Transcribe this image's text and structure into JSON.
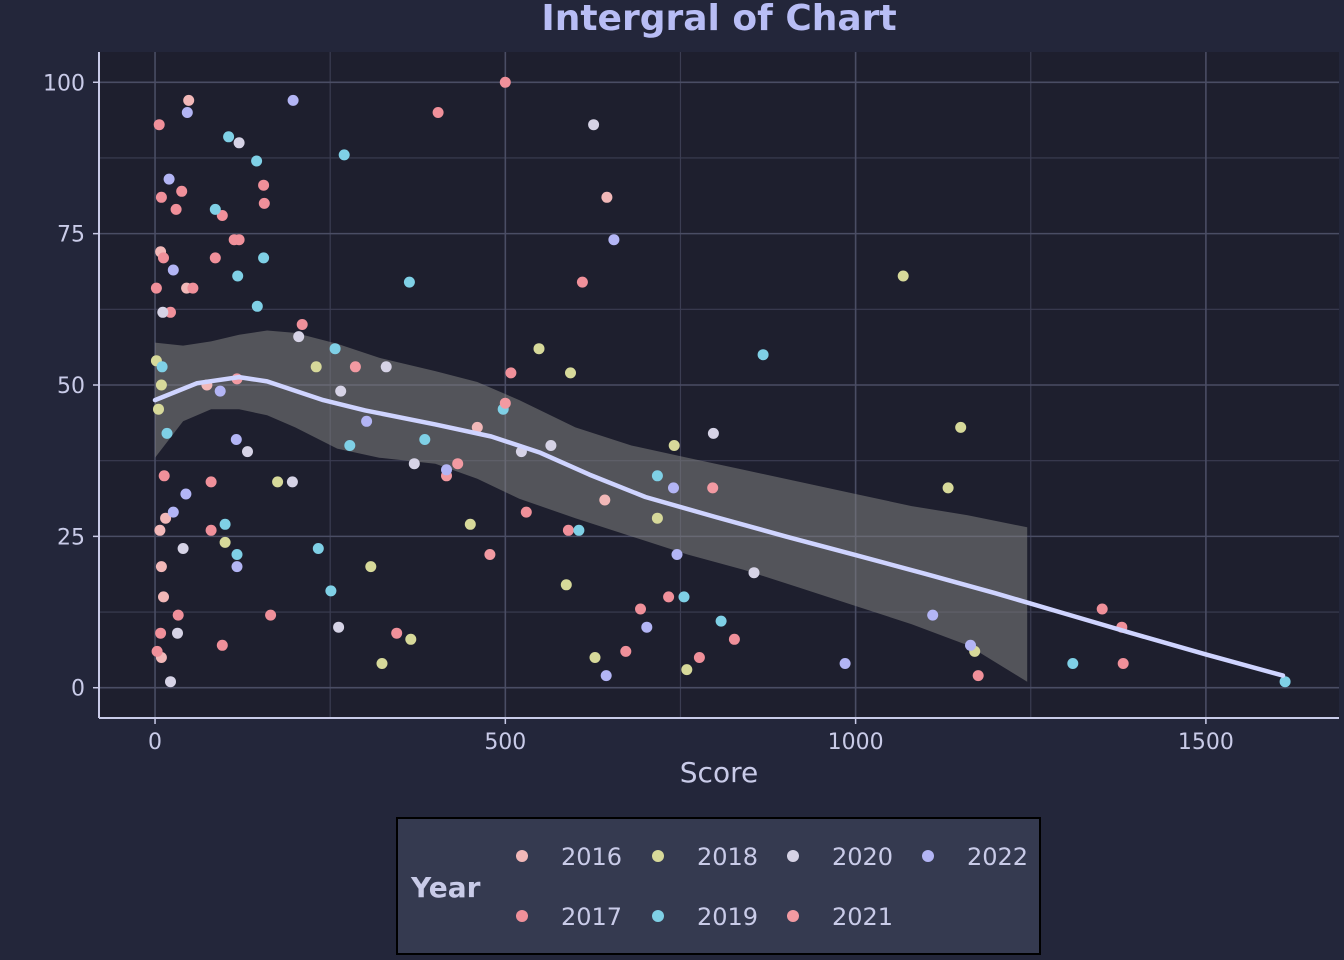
{
  "chart_data": {
    "type": "scatter",
    "title": "Intergral of Chart",
    "xlabel": "Score",
    "ylabel": "",
    "xlim": [
      -80,
      1690
    ],
    "ylim": [
      -5,
      105
    ],
    "x_ticks": [
      0,
      500,
      1000,
      1500
    ],
    "y_ticks": [
      0,
      25,
      50,
      75,
      100
    ],
    "x_tick_labels": [
      "0",
      "500",
      "1000",
      "1500"
    ],
    "y_tick_labels": [
      "0",
      "25",
      "50",
      "75",
      "100"
    ],
    "grid": true,
    "legend": {
      "title": "Year",
      "placement": "bottom",
      "entries": [
        "2016",
        "2017",
        "2018",
        "2019",
        "2020",
        "2021",
        "2022"
      ]
    },
    "colors": {
      "2016": "#f2b8b8",
      "2017": "#f0909a",
      "2018": "#d7d99a",
      "2019": "#7fd0e6",
      "2020": "#d6d3e6",
      "2021": "#f29aa2",
      "2022": "#b3b5f5",
      "trend": "#cfd4ff",
      "band": "#808080"
    },
    "series": [
      {
        "name": "2016",
        "points": [
          [
            7,
            26
          ],
          [
            9,
            20
          ],
          [
            12,
            15
          ],
          [
            15,
            28
          ],
          [
            8,
            72
          ],
          [
            45,
            66
          ],
          [
            48,
            97
          ],
          [
            74,
            50
          ],
          [
            645,
            81
          ],
          [
            460,
            43
          ],
          [
            9,
            5
          ],
          [
            642,
            31
          ]
        ]
      },
      {
        "name": "2017",
        "points": [
          [
            2,
            66
          ],
          [
            6,
            93
          ],
          [
            9,
            81
          ],
          [
            12,
            71
          ],
          [
            13,
            35
          ],
          [
            22,
            62
          ],
          [
            30,
            79
          ],
          [
            38,
            82
          ],
          [
            54,
            66
          ],
          [
            80,
            34
          ],
          [
            80,
            26
          ],
          [
            86,
            71
          ],
          [
            96,
            78
          ],
          [
            96,
            7
          ],
          [
            113,
            74
          ],
          [
            120,
            74
          ],
          [
            155,
            83
          ],
          [
            156,
            80
          ],
          [
            165,
            12
          ],
          [
            210,
            60
          ],
          [
            345,
            9
          ],
          [
            404,
            95
          ],
          [
            500,
            100
          ],
          [
            508,
            52
          ],
          [
            530,
            29
          ],
          [
            590,
            26
          ],
          [
            610,
            67
          ],
          [
            672,
            6
          ],
          [
            693,
            13
          ],
          [
            733,
            15
          ],
          [
            777,
            5
          ],
          [
            827,
            8
          ],
          [
            1352,
            13
          ],
          [
            1380,
            10
          ],
          [
            1382,
            4
          ],
          [
            1175,
            2
          ],
          [
            3,
            6
          ],
          [
            8,
            9
          ],
          [
            33,
            12
          ]
        ]
      },
      {
        "name": "2018",
        "points": [
          [
            2,
            54
          ],
          [
            5,
            46
          ],
          [
            9,
            50
          ],
          [
            100,
            24
          ],
          [
            175,
            34
          ],
          [
            230,
            53
          ],
          [
            308,
            20
          ],
          [
            324,
            4
          ],
          [
            365,
            8
          ],
          [
            450,
            27
          ],
          [
            548,
            56
          ],
          [
            587,
            17
          ],
          [
            593,
            52
          ],
          [
            628,
            5
          ],
          [
            717,
            28
          ],
          [
            741,
            40
          ],
          [
            759,
            3
          ],
          [
            1068,
            68
          ],
          [
            1132,
            33
          ],
          [
            1150,
            43
          ],
          [
            1170,
            6
          ]
        ]
      },
      {
        "name": "2019",
        "points": [
          [
            10,
            53
          ],
          [
            17,
            42
          ],
          [
            86,
            79
          ],
          [
            100,
            27
          ],
          [
            105,
            91
          ],
          [
            118,
            68
          ],
          [
            117,
            22
          ],
          [
            145,
            87
          ],
          [
            146,
            63
          ],
          [
            155,
            71
          ],
          [
            233,
            23
          ],
          [
            251,
            16
          ],
          [
            257,
            56
          ],
          [
            270,
            88
          ],
          [
            278,
            40
          ],
          [
            363,
            67
          ],
          [
            385,
            41
          ],
          [
            497,
            46
          ],
          [
            605,
            26
          ],
          [
            717,
            35
          ],
          [
            755,
            15
          ],
          [
            808,
            11
          ],
          [
            868,
            55
          ],
          [
            1310,
            4
          ],
          [
            1613,
            1
          ]
        ]
      },
      {
        "name": "2020",
        "points": [
          [
            11,
            62
          ],
          [
            22,
            1
          ],
          [
            32,
            9
          ],
          [
            40,
            23
          ],
          [
            120,
            90
          ],
          [
            132,
            39
          ],
          [
            196,
            34
          ],
          [
            205,
            58
          ],
          [
            262,
            10
          ],
          [
            265,
            49
          ],
          [
            330,
            53
          ],
          [
            370,
            37
          ],
          [
            523,
            39
          ],
          [
            565,
            40
          ],
          [
            626,
            93
          ],
          [
            797,
            42
          ],
          [
            855,
            19
          ]
        ]
      },
      {
        "name": "2021",
        "points": [
          [
            286,
            53
          ],
          [
            416,
            35
          ],
          [
            432,
            37
          ],
          [
            478,
            22
          ],
          [
            500,
            47
          ],
          [
            796,
            33
          ],
          [
            117,
            51
          ]
        ]
      },
      {
        "name": "2022",
        "points": [
          [
            20,
            84
          ],
          [
            26,
            69
          ],
          [
            26,
            29
          ],
          [
            44,
            32
          ],
          [
            46,
            95
          ],
          [
            93,
            49
          ],
          [
            116,
            41
          ],
          [
            117,
            20
          ],
          [
            197,
            97
          ],
          [
            302,
            44
          ],
          [
            416,
            36
          ],
          [
            644,
            2
          ],
          [
            655,
            74
          ],
          [
            702,
            10
          ],
          [
            740,
            33
          ],
          [
            745,
            22
          ],
          [
            985,
            4
          ],
          [
            1110,
            12
          ],
          [
            1164,
            7
          ]
        ]
      }
    ],
    "trend_line": {
      "x": [
        0,
        60,
        120,
        160,
        240,
        300,
        400,
        480,
        550,
        620,
        700,
        800,
        900,
        1000,
        1100,
        1200,
        1300,
        1400,
        1500,
        1610
      ],
      "y": [
        47.5,
        50.3,
        51.3,
        50.6,
        47.5,
        45.8,
        43.5,
        41.5,
        38.8,
        35.2,
        31.5,
        28.2,
        25.0,
        21.9,
        18.8,
        15.6,
        12.2,
        8.8,
        5.5,
        2.0
      ]
    },
    "confidence_band": {
      "x": [
        0,
        40,
        80,
        120,
        160,
        200,
        260,
        320,
        400,
        460,
        520,
        600,
        680,
        760,
        840,
        920,
        1000,
        1080,
        1160,
        1245
      ],
      "upper": [
        57,
        56.5,
        57.2,
        58.3,
        59.0,
        58.6,
        56.8,
        54.5,
        52.3,
        50.5,
        47.5,
        43.0,
        40.0,
        38.0,
        36.0,
        34.0,
        32.0,
        30.0,
        28.5,
        26.5
      ],
      "lower": [
        38,
        44,
        46,
        46,
        45,
        43,
        39.5,
        38.0,
        37.0,
        34.5,
        31.2,
        28.0,
        25.0,
        22.0,
        19.5,
        16.5,
        13.5,
        10.5,
        7.0,
        1.0
      ]
    }
  }
}
